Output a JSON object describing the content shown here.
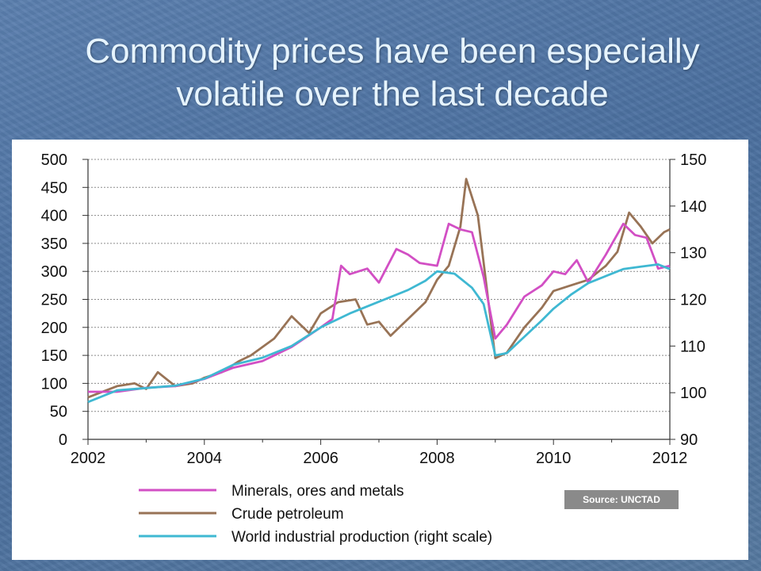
{
  "slide": {
    "title_line1": "Commodity prices have been especially",
    "title_line2": "volatile over the last decade",
    "source": "Source: UNCTAD"
  },
  "colors": {
    "background": "#5077a6",
    "title": "#e6f4ff",
    "minerals": "#d24fc4",
    "crude": "#987356",
    "industrial": "#3fb8d2",
    "source_badge": "#8a8a8a"
  },
  "chart_data": {
    "type": "line",
    "title": "",
    "xlabel": "",
    "ylabel": "",
    "y2label": "",
    "xlim": [
      2002,
      2012
    ],
    "ylim": [
      0,
      500
    ],
    "y2lim": [
      90,
      150
    ],
    "x_ticks": [
      2002,
      2004,
      2006,
      2008,
      2010,
      2012
    ],
    "y_ticks": [
      0,
      50,
      100,
      150,
      200,
      250,
      300,
      350,
      400,
      450,
      500
    ],
    "y2_ticks": [
      90,
      100,
      110,
      120,
      130,
      140,
      150
    ],
    "grid": true,
    "legend_position": "bottom",
    "series": [
      {
        "name": "Minerals, ores and metals",
        "axis": "left",
        "color": "#d24fc4",
        "x": [
          2002,
          2002.5,
          2003,
          2003.5,
          2004,
          2004.5,
          2005,
          2005.5,
          2006,
          2006.2,
          2006.35,
          2006.5,
          2006.8,
          2007,
          2007.3,
          2007.5,
          2007.7,
          2008,
          2008.2,
          2008.4,
          2008.6,
          2008.8,
          2009,
          2009.2,
          2009.5,
          2009.8,
          2010,
          2010.2,
          2010.4,
          2010.6,
          2010.9,
          2011.2,
          2011.4,
          2011.6,
          2011.8,
          2012
        ],
        "y": [
          85,
          85,
          92,
          95,
          108,
          128,
          140,
          165,
          200,
          215,
          310,
          295,
          305,
          280,
          340,
          330,
          315,
          310,
          385,
          375,
          370,
          290,
          180,
          205,
          255,
          275,
          300,
          295,
          320,
          280,
          330,
          385,
          365,
          360,
          305,
          310
        ]
      },
      {
        "name": "Crude petroleum",
        "axis": "left",
        "color": "#987356",
        "x": [
          2002,
          2002.5,
          2002.8,
          2003,
          2003.2,
          2003.5,
          2003.8,
          2004,
          2004.3,
          2004.6,
          2004.8,
          2005,
          2005.2,
          2005.5,
          2005.8,
          2006,
          2006.3,
          2006.6,
          2006.8,
          2007,
          2007.2,
          2007.5,
          2007.8,
          2008,
          2008.2,
          2008.4,
          2008.5,
          2008.7,
          2008.9,
          2009,
          2009.2,
          2009.5,
          2009.8,
          2010,
          2010.3,
          2010.6,
          2010.9,
          2011.1,
          2011.3,
          2011.5,
          2011.7,
          2011.9,
          2012
        ],
        "y": [
          75,
          95,
          100,
          90,
          120,
          95,
          100,
          110,
          120,
          140,
          150,
          165,
          180,
          220,
          190,
          225,
          245,
          250,
          205,
          210,
          185,
          215,
          245,
          285,
          310,
          380,
          465,
          400,
          230,
          145,
          155,
          200,
          235,
          265,
          275,
          285,
          310,
          335,
          405,
          380,
          350,
          370,
          375
        ]
      },
      {
        "name": "World industrial production (right scale)",
        "axis": "right",
        "color": "#3fb8d2",
        "x": [
          2002,
          2002.5,
          2003,
          2003.5,
          2004,
          2004.5,
          2005,
          2005.5,
          2006,
          2006.5,
          2007,
          2007.5,
          2007.8,
          2008,
          2008.3,
          2008.6,
          2008.8,
          2009,
          2009.2,
          2009.5,
          2009.8,
          2010,
          2010.3,
          2010.6,
          2010.9,
          2011.2,
          2011.5,
          2011.8,
          2012
        ],
        "y": [
          98,
          100.5,
          101,
          101.5,
          103,
          106,
          107.5,
          110,
          114,
          117,
          119.5,
          122,
          124,
          126,
          125.5,
          122.5,
          119,
          108,
          108.5,
          112,
          115.5,
          118,
          121,
          123.5,
          125,
          126.5,
          127,
          127.5,
          126.5
        ]
      }
    ]
  }
}
